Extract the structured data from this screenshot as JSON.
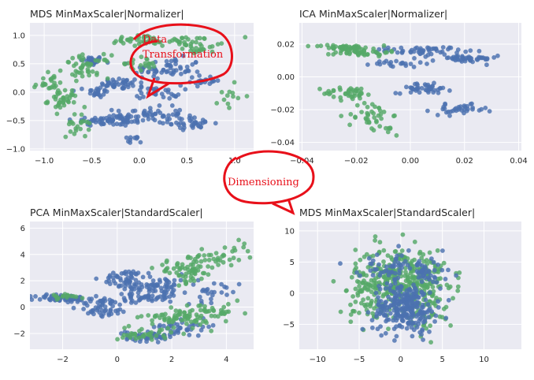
{
  "colors": {
    "background": "#eaeaf2",
    "grid": "#ffffff",
    "series_blue": "#4c72b0",
    "series_green": "#55a868",
    "callout": "#e8101a"
  },
  "annotations": {
    "data_transformation_line1": "Data",
    "data_transformation_line2": "Transformation",
    "dimensioning": "Dimensioning"
  },
  "chart_data": [
    {
      "type": "scatter",
      "title": "MDS MinMaxScaler|Normalizer|",
      "xlim": [
        -1.15,
        1.2
      ],
      "ylim": [
        -1.03,
        1.22
      ],
      "xticks": [
        -1.0,
        -0.5,
        0.0,
        0.5,
        1.0
      ],
      "xtick_labels": [
        "−1.0",
        "−0.5",
        "0.0",
        "0.5",
        "1.0"
      ],
      "yticks": [
        -1.0,
        -0.5,
        0.0,
        0.5,
        1.0
      ],
      "ytick_labels": [
        "−1.0",
        "−0.5",
        "0.0",
        "0.5",
        "1.0"
      ],
      "grid": true,
      "series": [
        {
          "color": "blue",
          "clusters": [
            {
              "x": -0.5,
              "y": 0.55,
              "sx": 0.06,
              "sy": 0.04,
              "n": 35
            },
            {
              "x": -0.2,
              "y": 0.15,
              "sx": 0.1,
              "sy": 0.05,
              "n": 40
            },
            {
              "x": -0.45,
              "y": 0.0,
              "sx": 0.06,
              "sy": 0.05,
              "n": 25
            },
            {
              "x": -0.3,
              "y": -0.5,
              "sx": 0.2,
              "sy": 0.05,
              "n": 70
            },
            {
              "x": 0.3,
              "y": 0.4,
              "sx": 0.18,
              "sy": 0.1,
              "n": 60
            },
            {
              "x": 0.1,
              "y": -0.4,
              "sx": 0.18,
              "sy": 0.07,
              "n": 50
            },
            {
              "x": 0.55,
              "y": -0.55,
              "sx": 0.12,
              "sy": 0.05,
              "n": 35
            },
            {
              "x": 0.7,
              "y": 0.2,
              "sx": 0.08,
              "sy": 0.05,
              "n": 20
            },
            {
              "x": 0.2,
              "y": 0.0,
              "sx": 0.12,
              "sy": 0.06,
              "n": 30
            },
            {
              "x": -0.1,
              "y": -0.85,
              "sx": 0.06,
              "sy": 0.04,
              "n": 10
            }
          ]
        },
        {
          "color": "green",
          "clusters": [
            {
              "x": -0.95,
              "y": 0.15,
              "sx": 0.08,
              "sy": 0.08,
              "n": 25
            },
            {
              "x": -0.8,
              "y": -0.15,
              "sx": 0.08,
              "sy": 0.1,
              "n": 35
            },
            {
              "x": -0.55,
              "y": 0.45,
              "sx": 0.12,
              "sy": 0.1,
              "n": 45
            },
            {
              "x": 0.0,
              "y": 0.9,
              "sx": 0.18,
              "sy": 0.05,
              "n": 30
            },
            {
              "x": 0.45,
              "y": 0.9,
              "sx": 0.22,
              "sy": 0.05,
              "n": 40
            },
            {
              "x": -0.65,
              "y": -0.6,
              "sx": 0.06,
              "sy": 0.1,
              "n": 20
            },
            {
              "x": 0.0,
              "y": 0.5,
              "sx": 0.1,
              "sy": 0.06,
              "n": 20
            },
            {
              "x": 0.95,
              "y": -0.05,
              "sx": 0.06,
              "sy": 0.15,
              "n": 12
            },
            {
              "x": 0.65,
              "y": 0.75,
              "sx": 0.08,
              "sy": 0.04,
              "n": 15
            }
          ]
        }
      ]
    },
    {
      "type": "scatter",
      "title": "ICA MinMaxScaler|Normalizer|",
      "xlim": [
        -0.041,
        0.041
      ],
      "ylim": [
        -0.045,
        0.033
      ],
      "xticks": [
        -0.04,
        -0.02,
        0.0,
        0.02,
        0.04
      ],
      "xtick_labels": [
        "−0.04",
        "−0.02",
        "0.00",
        "0.02",
        "0.04"
      ],
      "yticks": [
        -0.04,
        -0.02,
        0.0,
        0.02
      ],
      "ytick_labels": [
        "−0.04",
        "−0.02",
        "0.00",
        "0.02"
      ],
      "grid": true,
      "series": [
        {
          "color": "blue",
          "clusters": [
            {
              "x": 0.005,
              "y": 0.016,
              "sx": 0.007,
              "sy": 0.0012,
              "n": 55
            },
            {
              "x": 0.02,
              "y": 0.011,
              "sx": 0.006,
              "sy": 0.0012,
              "n": 45
            },
            {
              "x": 0.005,
              "y": -0.007,
              "sx": 0.005,
              "sy": 0.0015,
              "n": 45
            },
            {
              "x": 0.018,
              "y": -0.02,
              "sx": 0.005,
              "sy": 0.0015,
              "n": 35
            },
            {
              "x": -0.005,
              "y": 0.008,
              "sx": 0.005,
              "sy": 0.0012,
              "n": 20
            }
          ]
        },
        {
          "color": "green",
          "clusters": [
            {
              "x": -0.025,
              "y": 0.018,
              "sx": 0.005,
              "sy": 0.0008,
              "n": 45
            },
            {
              "x": -0.018,
              "y": 0.015,
              "sx": 0.005,
              "sy": 0.0012,
              "n": 40
            },
            {
              "x": -0.022,
              "y": -0.01,
              "sx": 0.005,
              "sy": 0.002,
              "n": 40
            },
            {
              "x": -0.015,
              "y": -0.023,
              "sx": 0.004,
              "sy": 0.004,
              "n": 35
            },
            {
              "x": -0.008,
              "y": -0.032,
              "sx": 0.002,
              "sy": 0.002,
              "n": 8
            }
          ]
        }
      ]
    },
    {
      "type": "scatter",
      "title": "PCA MinMaxScaler|StandardScaler|",
      "xlim": [
        -3.2,
        5.0
      ],
      "ylim": [
        -3.2,
        6.5
      ],
      "xticks": [
        -2,
        0,
        2,
        4
      ],
      "xtick_labels": [
        "−2",
        "0",
        "2",
        "4"
      ],
      "yticks": [
        -2,
        0,
        2,
        4,
        6
      ],
      "ytick_labels": [
        "−2",
        "0",
        "2",
        "4",
        "6"
      ],
      "grid": true,
      "series": [
        {
          "color": "blue",
          "clusters": [
            {
              "x": -2.0,
              "y": 0.65,
              "sx": 0.5,
              "sy": 0.15,
              "n": 60
            },
            {
              "x": -0.5,
              "y": 0.0,
              "sx": 0.45,
              "sy": 0.4,
              "n": 55
            },
            {
              "x": 0.3,
              "y": 2.2,
              "sx": 0.4,
              "sy": 0.3,
              "n": 45
            },
            {
              "x": 1.5,
              "y": 1.6,
              "sx": 0.6,
              "sy": 0.45,
              "n": 70
            },
            {
              "x": 1.2,
              "y": -2.2,
              "sx": 0.45,
              "sy": 0.2,
              "n": 50
            },
            {
              "x": 2.5,
              "y": -1.5,
              "sx": 0.6,
              "sy": 0.25,
              "n": 35
            },
            {
              "x": 3.5,
              "y": 1.2,
              "sx": 0.5,
              "sy": 0.4,
              "n": 25
            },
            {
              "x": 0.8,
              "y": 0.8,
              "sx": 0.5,
              "sy": 0.3,
              "n": 40
            }
          ]
        },
        {
          "color": "green",
          "clusters": [
            {
              "x": 2.5,
              "y": 2.7,
              "sx": 0.55,
              "sy": 0.45,
              "n": 60
            },
            {
              "x": 3.6,
              "y": 3.8,
              "sx": 0.45,
              "sy": 0.4,
              "n": 30
            },
            {
              "x": 2.2,
              "y": -0.8,
              "sx": 0.6,
              "sy": 0.35,
              "n": 60
            },
            {
              "x": 1.0,
              "y": -2.0,
              "sx": 0.5,
              "sy": 0.3,
              "n": 35
            },
            {
              "x": 3.5,
              "y": -0.5,
              "sx": 0.6,
              "sy": 0.4,
              "n": 35
            },
            {
              "x": -1.8,
              "y": 0.85,
              "sx": 0.35,
              "sy": 0.1,
              "n": 15
            },
            {
              "x": 4.5,
              "y": 4.5,
              "sx": 0.2,
              "sy": 0.6,
              "n": 8
            }
          ]
        }
      ]
    },
    {
      "type": "scatter",
      "title": "MDS MinMaxScaler|StandardScaler|",
      "xlim": [
        -12.2,
        14.5
      ],
      "ylim": [
        -9.0,
        11.5
      ],
      "xticks": [
        -10,
        -5,
        0,
        5,
        10
      ],
      "xtick_labels": [
        "−10",
        "−5",
        "0",
        "5",
        "10"
      ],
      "yticks": [
        -5,
        0,
        5,
        10
      ],
      "ytick_labels": [
        "−5",
        "0",
        "5",
        "10"
      ],
      "grid": true,
      "series": [
        {
          "color": "green",
          "clusters": [
            {
              "x": 0.0,
              "y": 2.5,
              "sx": 2.7,
              "sy": 2.4,
              "n": 320
            },
            {
              "x": -3.5,
              "y": -1.0,
              "sx": 1.6,
              "sy": 2.4,
              "n": 60
            },
            {
              "x": 3.5,
              "y": -1.5,
              "sx": 1.4,
              "sy": 2.2,
              "n": 55
            }
          ]
        },
        {
          "color": "blue",
          "clusters": [
            {
              "x": 0.5,
              "y": -2.3,
              "sx": 1.9,
              "sy": 2.0,
              "n": 260
            },
            {
              "x": -1.5,
              "y": 4.2,
              "sx": 1.8,
              "sy": 1.2,
              "n": 50
            },
            {
              "x": 3.0,
              "y": 3.0,
              "sx": 1.6,
              "sy": 1.4,
              "n": 40
            }
          ]
        }
      ]
    }
  ]
}
